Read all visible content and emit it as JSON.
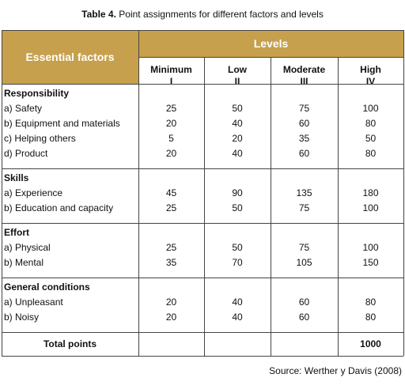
{
  "title": {
    "label": "Table 4.",
    "text": "Point assignments for different factors and levels"
  },
  "header": {
    "factors": "Essential factors",
    "levels": "Levels",
    "columns": [
      {
        "name": "Minimum",
        "roman": "I"
      },
      {
        "name": "Low",
        "roman": "II"
      },
      {
        "name": "Moderate",
        "roman": "III"
      },
      {
        "name": "High",
        "roman": "IV"
      }
    ]
  },
  "groups": [
    {
      "name": "Responsibility",
      "items": [
        {
          "label": "a) Safety",
          "values": [
            25,
            50,
            75,
            100
          ]
        },
        {
          "label": "b) Equipment and materials",
          "values": [
            20,
            40,
            60,
            80
          ]
        },
        {
          "label": "c) Helping others",
          "values": [
            5,
            20,
            35,
            50
          ]
        },
        {
          "label": "d) Product",
          "values": [
            20,
            40,
            60,
            80
          ]
        }
      ]
    },
    {
      "name": "Skills",
      "items": [
        {
          "label": "a) Experience",
          "values": [
            45,
            90,
            135,
            180
          ]
        },
        {
          "label": "b) Education and capacity",
          "values": [
            25,
            50,
            75,
            100
          ]
        }
      ]
    },
    {
      "name": "Effort",
      "items": [
        {
          "label": "a) Physical",
          "values": [
            25,
            50,
            75,
            100
          ]
        },
        {
          "label": "b) Mental",
          "values": [
            35,
            70,
            105,
            150
          ]
        }
      ]
    },
    {
      "name": "General conditions",
      "items": [
        {
          "label": "a) Unpleasant",
          "values": [
            20,
            40,
            60,
            80
          ]
        },
        {
          "label": "b) Noisy",
          "values": [
            20,
            40,
            60,
            80
          ]
        }
      ]
    }
  ],
  "total": {
    "label": "Total points",
    "value": 1000
  },
  "source": "Source: Werther y Davis (2008)"
}
